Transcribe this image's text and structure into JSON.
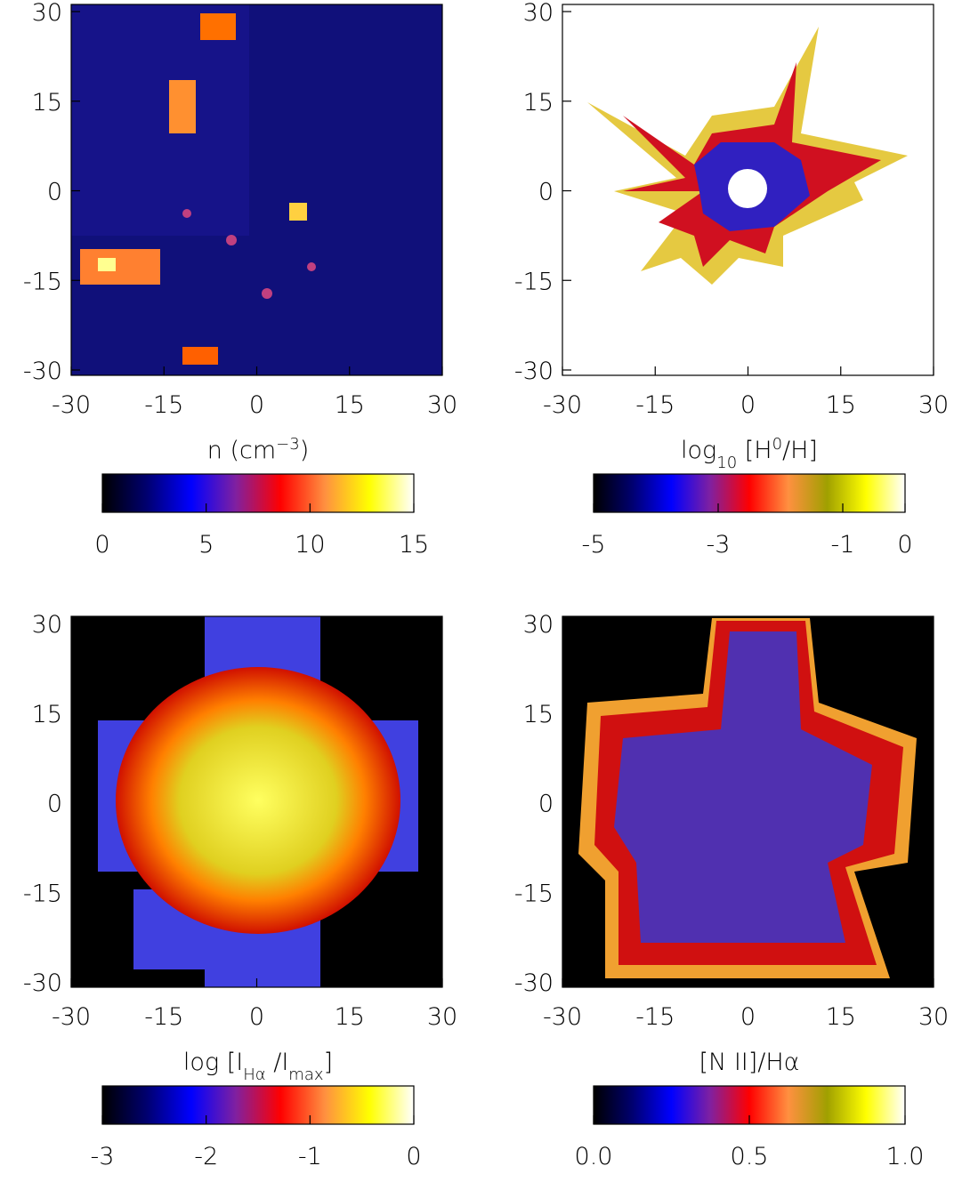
{
  "chart_data": [
    {
      "type": "image",
      "xlim": [
        -30,
        30
      ],
      "ylim": [
        -30,
        30
      ],
      "xticks": [
        -30,
        -15,
        0,
        15,
        30
      ],
      "yticks": [
        -30,
        -15,
        0,
        15,
        30
      ],
      "colorbar_label": [
        {
          "text": "n (cm"
        },
        {
          "text": "−3",
          "style": "sup"
        },
        {
          "text": ")"
        }
      ],
      "clim": [
        0,
        15
      ],
      "cticks": [
        0,
        5,
        10,
        15
      ],
      "colormap": [
        "#000000",
        "#000070",
        "#0000ff",
        "#8020a0",
        "#ff0000",
        "#ff9040",
        "#ffff00",
        "#ffffff"
      ]
    },
    {
      "type": "image",
      "xlim": [
        -30,
        30
      ],
      "ylim": [
        -30,
        30
      ],
      "xticks": [
        -30,
        -15,
        0,
        15,
        30
      ],
      "yticks": [
        -30,
        -15,
        0,
        15,
        30
      ],
      "colorbar_label": [
        {
          "text": "log"
        },
        {
          "text": "10",
          "style": "sub"
        },
        {
          "text": " [H"
        },
        {
          "text": "0",
          "style": "sup"
        },
        {
          "text": "/H]"
        }
      ],
      "clim": [
        -5,
        0
      ],
      "cticks": [
        -5,
        -3,
        -1,
        0
      ],
      "colormap": [
        "#000000",
        "#000070",
        "#0000ff",
        "#8020a0",
        "#ff0000",
        "#ff9040",
        "#a0a000",
        "#ffff00",
        "#ffffff"
      ]
    },
    {
      "type": "image",
      "xlim": [
        -30,
        30
      ],
      "ylim": [
        -30,
        30
      ],
      "xticks": [
        -30,
        -15,
        0,
        15,
        30
      ],
      "yticks": [
        -30,
        -15,
        0,
        15,
        30
      ],
      "colorbar_label": [
        {
          "text": "log [I"
        },
        {
          "text": "Hα",
          "style": "sub"
        },
        {
          "text": " /I"
        },
        {
          "text": "max",
          "style": "sub"
        },
        {
          "text": "]"
        }
      ],
      "clim": [
        -3,
        0
      ],
      "cticks": [
        -3,
        -2,
        -1,
        0
      ],
      "colormap": [
        "#000000",
        "#000070",
        "#0000ff",
        "#8020a0",
        "#ff0000",
        "#ff9040",
        "#ffff00",
        "#ffffff"
      ]
    },
    {
      "type": "image",
      "xlim": [
        -30,
        30
      ],
      "ylim": [
        -30,
        30
      ],
      "xticks": [
        -30,
        -15,
        0,
        15,
        30
      ],
      "yticks": [
        -30,
        -15,
        0,
        15,
        30
      ],
      "colorbar_label": [
        {
          "text": "[N II]/Hα"
        }
      ],
      "clim": [
        0,
        1
      ],
      "cticks": [
        {
          "value": 0,
          "label": "0.0"
        },
        {
          "value": 0.5,
          "label": "0.5"
        },
        {
          "value": 1,
          "label": "1.0"
        }
      ],
      "colormap": [
        "#000000",
        "#000070",
        "#0000ff",
        "#8020a0",
        "#ff0000",
        "#ff9040",
        "#a0a000",
        "#ffff00",
        "#ffffff"
      ]
    }
  ]
}
